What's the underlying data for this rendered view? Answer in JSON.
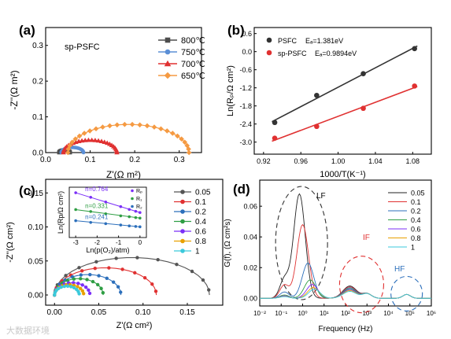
{
  "watermark": "大数据环境",
  "chart_data": [
    {
      "panel": "(a)",
      "type": "scatter",
      "annotation": "sp-PSFC",
      "xlabel": "Z'(Ω m²)",
      "ylabel": "-Z''(Ω m²)",
      "xlim": [
        0,
        0.35
      ],
      "ylim": [
        0,
        0.35
      ],
      "xticks": [
        "0.0",
        "0.1",
        "0.2",
        "0.3"
      ],
      "yticks": [
        "0.0",
        "0.1",
        "0.2",
        "0.3"
      ],
      "legend_position": "top-right",
      "series": [
        {
          "name": "800℃",
          "color": "#4d4d4d",
          "marker": "square",
          "x_start": 0.03,
          "x_end": 0.055
        },
        {
          "name": "750℃",
          "color": "#5b8fd6",
          "marker": "circle",
          "x_start": 0.035,
          "x_end": 0.085
        },
        {
          "name": "700℃",
          "color": "#e03131",
          "marker": "triangle",
          "x_start": 0.04,
          "x_end": 0.16
        },
        {
          "name": "650℃",
          "color": "#f59a42",
          "marker": "diamond",
          "x_start": 0.05,
          "x_end": 0.322
        }
      ]
    },
    {
      "panel": "(b)",
      "type": "scatter",
      "xlabel": "1000/T(K⁻¹)",
      "ylabel": "Ln(Rₚ/Ω cm²)",
      "xlim": [
        0.91,
        1.1
      ],
      "ylim": [
        -3.4,
        0.8
      ],
      "xticks": [
        "0.92",
        "0.96",
        "1.00",
        "1.04",
        "1.08"
      ],
      "yticks": [
        "-3.0",
        "-2.4",
        "-1.8",
        "-1.2",
        "-0.6",
        "0.0",
        "0.6"
      ],
      "legend_position": "top-left",
      "series": [
        {
          "name": "PSFC",
          "ea_label": "Eₐ=1.381eV",
          "color": "#333333",
          "x": [
            0.932,
            0.977,
            1.027,
            1.082
          ],
          "y": [
            -2.35,
            -1.45,
            -0.73,
            0.1
          ]
        },
        {
          "name": "sp-PSFC",
          "ea_label": "Eₐ=0.9894eV",
          "color": "#e03131",
          "x": [
            0.932,
            0.977,
            1.027,
            1.082
          ],
          "y": [
            -2.87,
            -2.48,
            -1.88,
            -1.14
          ]
        }
      ]
    },
    {
      "panel": "(c)",
      "type": "scatter",
      "xlabel": "Z'(Ω cm²)",
      "ylabel": "-Z''(Ω cm²)",
      "xlim": [
        -0.01,
        0.19
      ],
      "ylim": [
        -0.015,
        0.17
      ],
      "xticks": [
        "0.00",
        "0.05",
        "0.10",
        "0.15"
      ],
      "yticks": [
        "0.00",
        "0.05",
        "0.10",
        "0.15"
      ],
      "legend_position": "right",
      "series": [
        {
          "name": "0.05",
          "color": "#555555",
          "x_start": 0.0,
          "x_end": 0.175,
          "peak": 0.055
        },
        {
          "name": "0.1",
          "color": "#e03131",
          "x_start": 0.0,
          "x_end": 0.115,
          "peak": 0.04
        },
        {
          "name": "0.2",
          "color": "#2c6fbb",
          "x_start": 0.0,
          "x_end": 0.075,
          "peak": 0.03
        },
        {
          "name": "0.4",
          "color": "#2f9e44",
          "x_start": 0.0,
          "x_end": 0.055,
          "peak": 0.024
        },
        {
          "name": "0.6",
          "color": "#7b2ff7",
          "x_start": 0.0,
          "x_end": 0.04,
          "peak": 0.018
        },
        {
          "name": "0.8",
          "color": "#e8a000",
          "x_start": 0.0,
          "x_end": 0.033,
          "peak": 0.015
        },
        {
          "name": "1",
          "color": "#3bc9db",
          "x_start": 0.0,
          "x_end": 0.028,
          "peak": 0.013
        }
      ],
      "inset": {
        "xlabel": "Ln(p(O₂)/atm)",
        "ylabel": "Ln(Rp/Ω cm²)",
        "xlim": [
          -3.3,
          0.3
        ],
        "ylim": [
          -2.6,
          0.3
        ],
        "xticks": [
          "-3",
          "-2",
          "-1",
          "0"
        ],
        "legend": [
          "Rₚ",
          "R₁",
          "R₂"
        ],
        "series": [
          {
            "label": "n=0.764",
            "color": "#7b2ff7",
            "x": [
              -3.0,
              -2.3,
              -1.6,
              -0.9,
              -0.5,
              -0.2,
              0.0
            ],
            "y": [
              -0.02,
              -0.28,
              -0.55,
              -0.82,
              -0.98,
              -1.09,
              -1.16
            ]
          },
          {
            "label": "n=0.331",
            "color": "#2f9e44",
            "x": [
              -3.0,
              -2.3,
              -1.6,
              -0.9,
              -0.5,
              -0.2,
              0.0
            ],
            "y": [
              -0.99,
              -1.1,
              -1.23,
              -1.35,
              -1.4,
              -1.45,
              -1.48
            ]
          },
          {
            "label": "n=0.241",
            "color": "#2c6fbb",
            "x": [
              -3.0,
              -2.3,
              -1.6,
              -0.9,
              -0.5,
              -0.2,
              0.0
            ],
            "y": [
              -1.63,
              -1.73,
              -1.8,
              -1.88,
              -1.93,
              -1.96,
              -1.98
            ]
          }
        ]
      }
    },
    {
      "panel": "(d)",
      "type": "line",
      "xlabel": "Frequency (Hz)",
      "ylabel": "G(f), (Ω cm²s)",
      "xlim": [
        -2,
        6
      ],
      "ylim": [
        -0.005,
        0.077
      ],
      "xticks": [
        "10⁻²",
        "10⁻¹",
        "10⁰",
        "10¹",
        "10²",
        "10³",
        "10⁴",
        "10⁵",
        "10⁶"
      ],
      "yticks": [
        "0.00",
        "0.02",
        "0.04",
        "0.06"
      ],
      "annotations": [
        "LF",
        "IF",
        "HF"
      ],
      "legend_position": "top-right",
      "series": [
        {
          "name": "0.05",
          "color": "#222222",
          "lf_amp": 0.068,
          "lf_center": -0.15
        },
        {
          "name": "0.1",
          "color": "#e03131",
          "lf_amp": 0.048,
          "lf_center": 0.0
        },
        {
          "name": "0.2",
          "color": "#2c6fbb",
          "lf_amp": 0.023,
          "lf_center": 0.25
        },
        {
          "name": "0.4",
          "color": "#2f9e44",
          "lf_amp": 0.012,
          "lf_center": 0.35
        },
        {
          "name": "0.6",
          "color": "#7b2ff7",
          "lf_amp": 0.009,
          "lf_center": 0.45
        },
        {
          "name": "0.8",
          "color": "#e8a000",
          "lf_amp": 0.007,
          "lf_center": 0.5
        },
        {
          "name": "1",
          "color": "#3bc9db",
          "lf_amp": 0.006,
          "lf_center": 0.55
        }
      ]
    }
  ]
}
